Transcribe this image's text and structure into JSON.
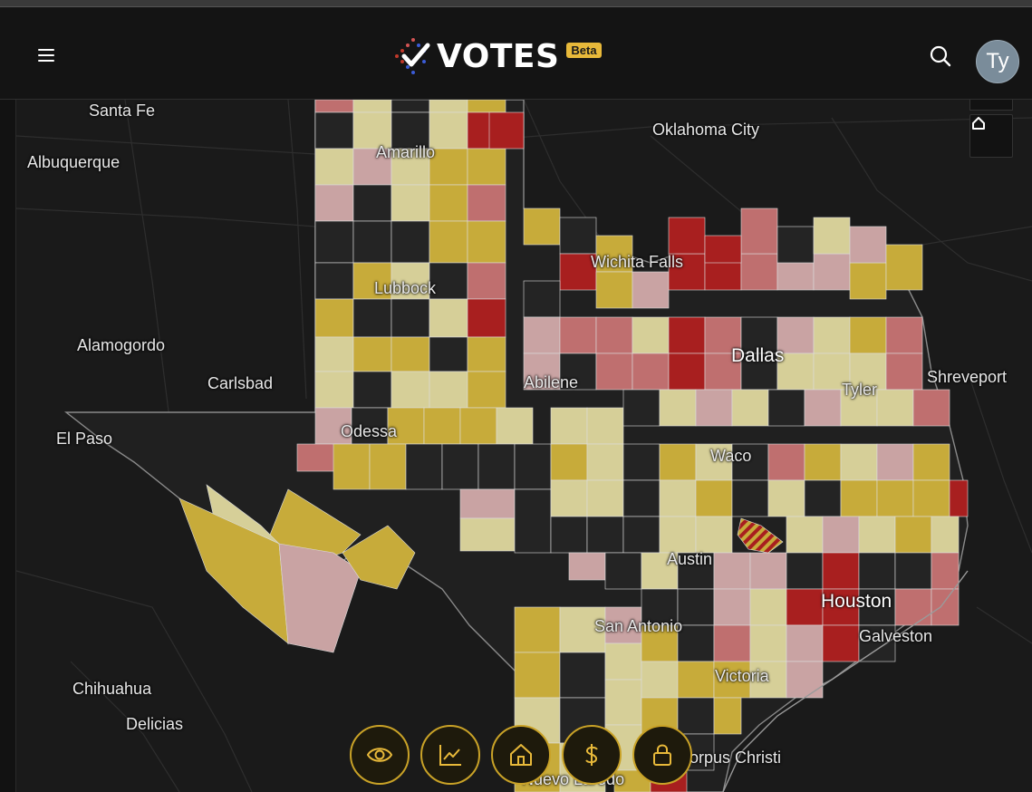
{
  "header": {
    "logo_text": "VOTES",
    "beta_badge": "Beta",
    "avatar_initials": "Ty",
    "colors": {
      "accent": "#e8b93a",
      "avatar_bg": "#7a8c9a",
      "header_bg": "#141414"
    }
  },
  "map": {
    "legend_colors": {
      "dark": "#242424",
      "light_tan": "#d6cf98",
      "gold": "#c7ab3a",
      "pink": "#c9a3a3",
      "rose": "#bf6f6f",
      "red": "#a81f1f"
    },
    "labels": {
      "santa_fe": "Santa Fe",
      "albuquerque": "Albuquerque",
      "alamogordo": "Alamogordo",
      "carlsbad": "Carlsbad",
      "el_paso": "El Paso",
      "chihuahua": "Chihuahua",
      "delicias": "Delicias",
      "amarillo": "Amarillo",
      "lubbock": "Lubbock",
      "odessa": "Odessa",
      "abilene": "Abilene",
      "wichita_falls": "Wichita Falls",
      "oklahoma_city": "Oklahoma City",
      "dallas": "Dallas",
      "tyler": "Tyler",
      "shreveport": "Shreveport",
      "waco": "Waco",
      "austin": "Austin",
      "san_antonio": "San Antonio",
      "houston": "Houston",
      "galveston": "Galveston",
      "victoria": "Victoria",
      "corpus_christi": "Corpus Christi",
      "nuevo_laredo": "Nuevo Laredo"
    },
    "home_control_icon": "home-icon"
  },
  "bottom_nav": [
    {
      "icon": "eye-icon"
    },
    {
      "icon": "chart-line-icon"
    },
    {
      "icon": "home-icon"
    },
    {
      "icon": "dollar-icon"
    },
    {
      "icon": "lock-icon"
    }
  ]
}
